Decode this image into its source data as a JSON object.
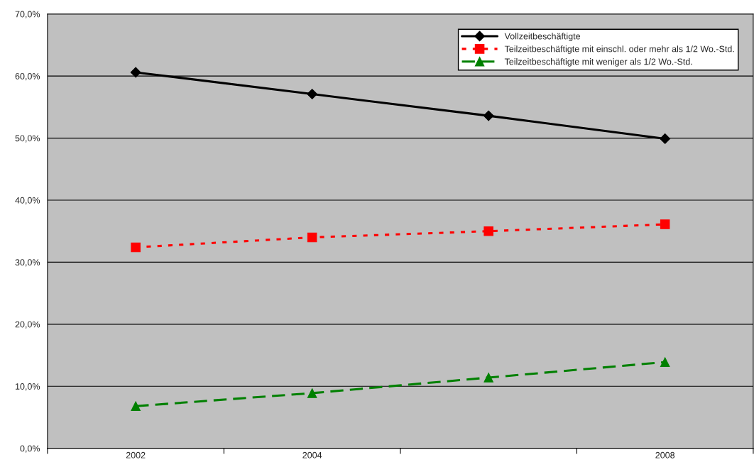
{
  "chart_data": {
    "type": "line",
    "categories": [
      "2002",
      "2004",
      null,
      "2008"
    ],
    "series": [
      {
        "name": "Vollzeitbeschäftigte",
        "color": "#000000",
        "marker": "diamond",
        "line_style": "solid",
        "values": [
          60.6,
          57.1,
          53.6,
          49.9
        ]
      },
      {
        "name": "Teilzeitbeschäftigte mit einschl. oder mehr als 1/2 Wo.-Std.",
        "color": "#ff0000",
        "marker": "square",
        "line_style": "dotted",
        "values": [
          32.4,
          34.0,
          35.0,
          36.1
        ]
      },
      {
        "name": "Teilzeitbeschäftigte mit weniger als 1/2 Wo.-Std.",
        "color": "#008000",
        "marker": "triangle",
        "line_style": "dashed",
        "values": [
          6.8,
          8.9,
          11.4,
          13.9
        ]
      }
    ],
    "ylim": [
      0,
      70
    ],
    "yticks": [
      {
        "value": 0,
        "label": "0,0%"
      },
      {
        "value": 10,
        "label": "10,0%"
      },
      {
        "value": 20,
        "label": "20,0%"
      },
      {
        "value": 30,
        "label": "30,0%"
      },
      {
        "value": 40,
        "label": "40,0%"
      },
      {
        "value": 50,
        "label": "50,0%"
      },
      {
        "value": 60,
        "label": "60,0%"
      },
      {
        "value": 70,
        "label": "70,0%"
      }
    ],
    "grid": "y",
    "legend": "top right"
  }
}
